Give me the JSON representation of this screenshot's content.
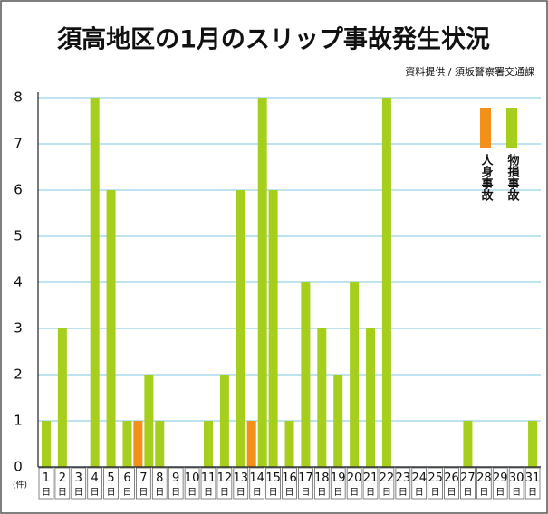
{
  "chart_data": {
    "type": "bar",
    "title": "須高地区の1月のスリップ事故発生状況",
    "subtitle": "資料提供 / 須坂警察署交通課",
    "y_unit": "(件)",
    "categories": [
      "1日",
      "2日",
      "3日",
      "4日",
      "5日",
      "6日",
      "7日",
      "8日",
      "9日",
      "10日",
      "11日",
      "12日",
      "13日",
      "14日",
      "15日",
      "16日",
      "17日",
      "18日",
      "19日",
      "20日",
      "21日",
      "22日",
      "23日",
      "24日",
      "25日",
      "26日",
      "27日",
      "28日",
      "29日",
      "30日",
      "31日"
    ],
    "series": [
      {
        "name": "人身事故",
        "color": "#f39019",
        "values": [
          0,
          0,
          0,
          0,
          0,
          0,
          1,
          0,
          0,
          0,
          0,
          0,
          0,
          1,
          0,
          0,
          0,
          0,
          0,
          0,
          0,
          0,
          0,
          0,
          0,
          0,
          0,
          0,
          0,
          0,
          0
        ]
      },
      {
        "name": "物損事故",
        "color": "#a5cf1c",
        "values": [
          1,
          3,
          0,
          8,
          6,
          1,
          2,
          1,
          0,
          0,
          1,
          2,
          6,
          8,
          6,
          1,
          4,
          3,
          2,
          4,
          3,
          8,
          0,
          0,
          0,
          0,
          1,
          0,
          0,
          0,
          1
        ]
      }
    ],
    "ylim": [
      0,
      8
    ],
    "yticks": [
      0,
      1,
      2,
      3,
      4,
      5,
      6,
      7,
      8
    ],
    "grid": true,
    "legend": "top-right"
  }
}
